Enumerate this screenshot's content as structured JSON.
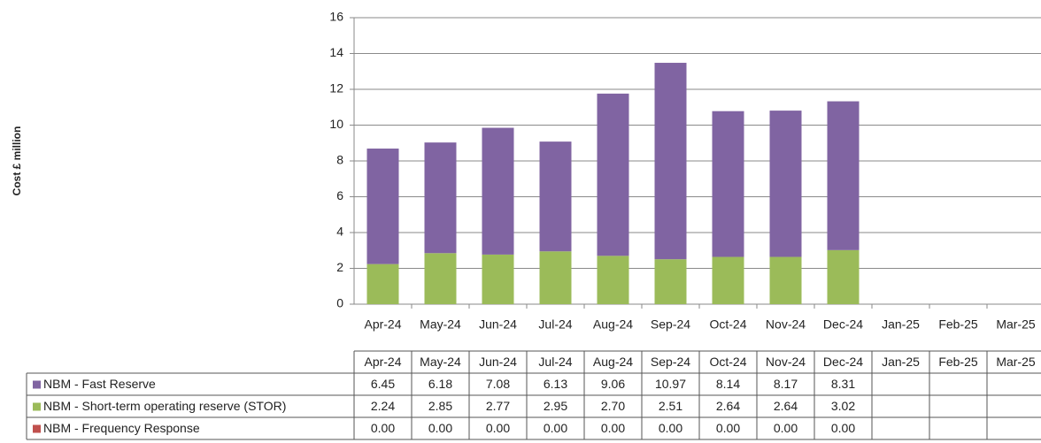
{
  "chart_data": {
    "type": "stacked-bar",
    "y_label": "Cost £ million",
    "categories": [
      "Apr-24",
      "May-24",
      "Jun-24",
      "Jul-24",
      "Aug-24",
      "Sep-24",
      "Oct-24",
      "Nov-24",
      "Dec-24",
      "Jan-25",
      "Feb-25",
      "Mar-25"
    ],
    "series": [
      {
        "name": "NBM - Fast Reserve",
        "color": "#8064a2",
        "values": [
          6.45,
          6.18,
          7.08,
          6.13,
          9.06,
          10.97,
          8.14,
          8.17,
          8.31,
          null,
          null,
          null
        ],
        "value_labels": [
          "6.45",
          "6.18",
          "7.08",
          "6.13",
          "9.06",
          "10.97",
          "8.14",
          "8.17",
          "8.31",
          null,
          null,
          null
        ]
      },
      {
        "name": "NBM - Short-term operating reserve (STOR)",
        "color": "#9bbb59",
        "values": [
          2.24,
          2.85,
          2.77,
          2.95,
          2.7,
          2.51,
          2.64,
          2.64,
          3.02,
          null,
          null,
          null
        ],
        "value_labels": [
          "2.24",
          "2.85",
          "2.77",
          "2.95",
          "2.70",
          "2.51",
          "2.64",
          "2.64",
          "3.02",
          null,
          null,
          null
        ]
      },
      {
        "name": "NBM - Frequency Response",
        "color": "#c0504d",
        "values": [
          0,
          0,
          0,
          0,
          0,
          0,
          0,
          0,
          0,
          null,
          null,
          null
        ],
        "value_labels": [
          "0.00",
          "0.00",
          "0.00",
          "0.00",
          "0.00",
          "0.00",
          "0.00",
          "0.00",
          "0.00",
          null,
          null,
          null
        ]
      }
    ],
    "ylim": [
      0,
      16
    ],
    "yticks": [
      0,
      2,
      4,
      6,
      8,
      10,
      12,
      14,
      16
    ],
    "grid": true
  }
}
